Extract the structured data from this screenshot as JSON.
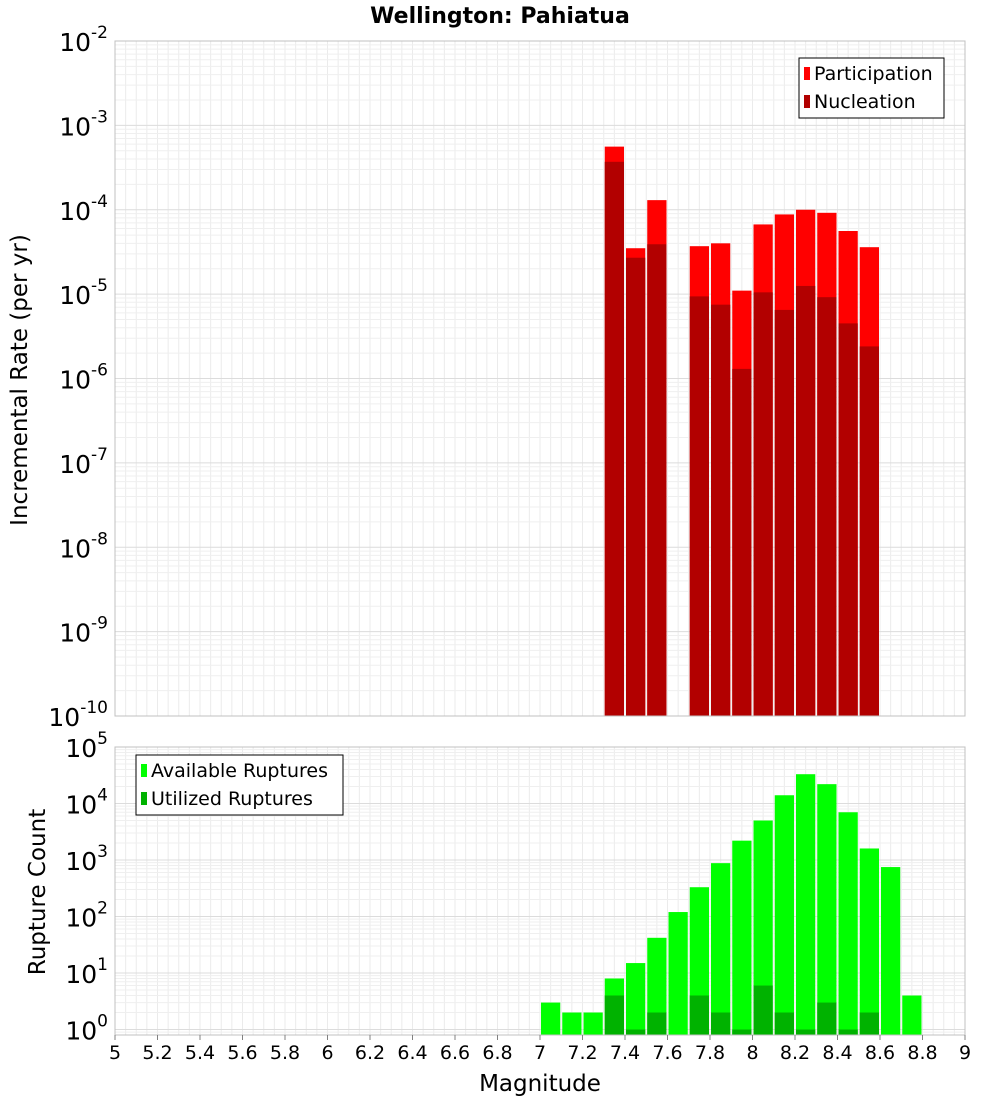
{
  "chart_data": [
    {
      "type": "bar",
      "panel": "top",
      "title": "Wellington: Pahiatua",
      "xlabel": "",
      "ylabel": "Incremental Rate (per yr)",
      "yscale": "log",
      "ylim": [
        1e-10,
        0.01
      ],
      "xlim": [
        5,
        9
      ],
      "ytick_exponents": [
        "-10",
        "-9",
        "-8",
        "-7",
        "-6",
        "-5",
        "-4",
        "-3",
        "-2"
      ],
      "grid": true,
      "legend_position": "top-right",
      "bar_width": 0.1,
      "series": [
        {
          "name": "Participation",
          "color": "#ff0000",
          "points": [
            {
              "x": 7.35,
              "y": 0.00056
            },
            {
              "x": 7.45,
              "y": 3.5e-05
            },
            {
              "x": 7.55,
              "y": 0.00013
            },
            {
              "x": 7.75,
              "y": 3.7e-05
            },
            {
              "x": 7.85,
              "y": 4e-05
            },
            {
              "x": 7.95,
              "y": 1.1e-05
            },
            {
              "x": 8.05,
              "y": 6.7e-05
            },
            {
              "x": 8.15,
              "y": 8.8e-05
            },
            {
              "x": 8.25,
              "y": 0.0001
            },
            {
              "x": 8.35,
              "y": 9.2e-05
            },
            {
              "x": 8.45,
              "y": 5.6e-05
            },
            {
              "x": 8.55,
              "y": 3.6e-05
            }
          ]
        },
        {
          "name": "Nucleation",
          "color": "#b20000",
          "points": [
            {
              "x": 7.35,
              "y": 0.00037
            },
            {
              "x": 7.45,
              "y": 2.7e-05
            },
            {
              "x": 7.55,
              "y": 3.9e-05
            },
            {
              "x": 7.75,
              "y": 9.4e-06
            },
            {
              "x": 7.85,
              "y": 7.5e-06
            },
            {
              "x": 7.95,
              "y": 1.3e-06
            },
            {
              "x": 8.05,
              "y": 1.05e-05
            },
            {
              "x": 8.15,
              "y": 6.5e-06
            },
            {
              "x": 8.25,
              "y": 1.25e-05
            },
            {
              "x": 8.35,
              "y": 9.2e-06
            },
            {
              "x": 8.45,
              "y": 4.5e-06
            },
            {
              "x": 8.55,
              "y": 2.4e-06
            }
          ]
        }
      ]
    },
    {
      "type": "bar",
      "panel": "bottom",
      "xlabel": "Magnitude",
      "ylabel": "Rupture Count",
      "yscale": "log",
      "ylim": [
        0.8,
        100000.0
      ],
      "xlim": [
        5,
        9
      ],
      "ytick_exponents": [
        "0",
        "1",
        "2",
        "3",
        "4",
        "5"
      ],
      "x_tick_labels": [
        "5",
        "5.2",
        "5.4",
        "5.6",
        "5.8",
        "6",
        "6.2",
        "6.4",
        "6.6",
        "6.8",
        "7",
        "7.2",
        "7.4",
        "7.6",
        "7.8",
        "8",
        "8.2",
        "8.4",
        "8.6",
        "8.8",
        "9"
      ],
      "grid": true,
      "legend_position": "top-left",
      "bar_width": 0.1,
      "series": [
        {
          "name": "Available Ruptures",
          "color": "#00ff00",
          "points": [
            {
              "x": 7.05,
              "y": 3
            },
            {
              "x": 7.15,
              "y": 2
            },
            {
              "x": 7.25,
              "y": 2
            },
            {
              "x": 7.35,
              "y": 8
            },
            {
              "x": 7.45,
              "y": 15
            },
            {
              "x": 7.55,
              "y": 42
            },
            {
              "x": 7.65,
              "y": 120
            },
            {
              "x": 7.75,
              "y": 330
            },
            {
              "x": 7.85,
              "y": 880
            },
            {
              "x": 7.95,
              "y": 2200
            },
            {
              "x": 8.05,
              "y": 5000
            },
            {
              "x": 8.15,
              "y": 14000
            },
            {
              "x": 8.25,
              "y": 33000
            },
            {
              "x": 8.35,
              "y": 22000
            },
            {
              "x": 8.45,
              "y": 7000
            },
            {
              "x": 8.55,
              "y": 1600
            },
            {
              "x": 8.65,
              "y": 750
            },
            {
              "x": 8.75,
              "y": 4
            }
          ]
        },
        {
          "name": "Utilized Ruptures",
          "color": "#00b200",
          "points": [
            {
              "x": 7.35,
              "y": 4
            },
            {
              "x": 7.45,
              "y": 1
            },
            {
              "x": 7.55,
              "y": 2
            },
            {
              "x": 7.75,
              "y": 4
            },
            {
              "x": 7.85,
              "y": 2
            },
            {
              "x": 7.95,
              "y": 1
            },
            {
              "x": 8.05,
              "y": 6
            },
            {
              "x": 8.15,
              "y": 2
            },
            {
              "x": 8.25,
              "y": 1
            },
            {
              "x": 8.35,
              "y": 3
            },
            {
              "x": 8.45,
              "y": 1
            },
            {
              "x": 8.55,
              "y": 2
            }
          ]
        }
      ]
    }
  ]
}
